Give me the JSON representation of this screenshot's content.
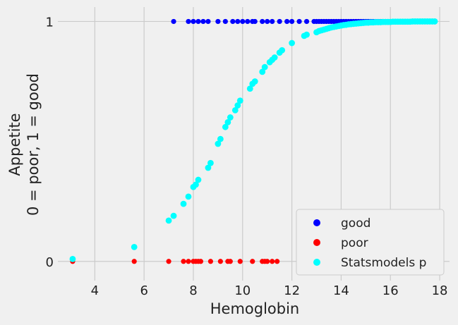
{
  "chart_data": {
    "type": "scatter",
    "xlabel": "Hemoglobin",
    "ylabel": [
      "Appetite",
      "0 = poor, 1 = good"
    ],
    "xlim": [
      2.5,
      18.4
    ],
    "ylim": [
      -0.08,
      1.06
    ],
    "xticks": [
      4,
      6,
      8,
      10,
      12,
      14,
      16,
      18
    ],
    "yticks": [
      0,
      1
    ],
    "grid": true,
    "legend_position": "bottom-right",
    "series": [
      {
        "name": "good",
        "color": "#0000ff",
        "x": [
          7.2,
          7.8,
          8.0,
          8.2,
          8.4,
          8.6,
          9.0,
          9.3,
          9.6,
          9.8,
          10.0,
          10.2,
          10.4,
          10.5,
          10.8,
          11.0,
          11.2,
          11.5,
          11.8,
          12.0,
          12.3,
          12.6,
          12.9,
          13.0,
          13.1,
          13.2,
          13.3,
          13.4,
          13.5,
          13.6,
          13.7,
          13.8,
          13.9,
          14.0,
          14.1,
          14.2,
          14.3,
          14.4,
          14.5,
          14.6,
          14.7,
          14.8,
          14.9,
          15.0,
          15.1,
          15.2,
          15.3,
          15.4,
          15.5,
          15.6,
          15.7,
          15.8,
          15.9,
          16.0,
          16.1,
          16.2,
          16.3,
          16.4
        ],
        "y": [
          1,
          1,
          1,
          1,
          1,
          1,
          1,
          1,
          1,
          1,
          1,
          1,
          1,
          1,
          1,
          1,
          1,
          1,
          1,
          1,
          1,
          1,
          1,
          1,
          1,
          1,
          1,
          1,
          1,
          1,
          1,
          1,
          1,
          1,
          1,
          1,
          1,
          1,
          1,
          1,
          1,
          1,
          1,
          1,
          1,
          1,
          1,
          1,
          1,
          1,
          1,
          1,
          1,
          1,
          1,
          1,
          1,
          1
        ]
      },
      {
        "name": "poor",
        "color": "#ff0000",
        "x": [
          3.1,
          5.6,
          7.0,
          7.6,
          7.8,
          8.0,
          8.1,
          8.2,
          8.3,
          8.7,
          9.1,
          9.4,
          9.5,
          9.9,
          10.4,
          10.8,
          10.9,
          11.0,
          11.2,
          11.4
        ],
        "y": [
          0,
          0,
          0,
          0,
          0,
          0,
          0,
          0,
          0,
          0,
          0,
          0,
          0,
          0,
          0,
          0,
          0,
          0,
          0,
          0
        ]
      },
      {
        "name": "Statsmodels p",
        "color": "#00ffff",
        "x": [
          3.1,
          5.6,
          7.0,
          7.2,
          7.6,
          7.8,
          8.0,
          8.1,
          8.2,
          8.6,
          8.7,
          9.0,
          9.1,
          9.3,
          9.4,
          9.5,
          9.7,
          9.8,
          9.9,
          10.3,
          10.4,
          10.5,
          10.8,
          10.9,
          11.1,
          11.2,
          11.3,
          11.5,
          11.6,
          12.0,
          12.5,
          12.6,
          13.0,
          13.1,
          13.2,
          13.3,
          13.4,
          13.5,
          13.6,
          13.7,
          13.8,
          13.9,
          14.0,
          14.1,
          14.2,
          14.3,
          14.4,
          14.5,
          14.6,
          14.7,
          14.8,
          14.9,
          15.0,
          15.1,
          15.2,
          15.3,
          15.4,
          15.5,
          15.6,
          15.7,
          15.8,
          15.9,
          16.0,
          16.1,
          16.2,
          16.3,
          16.4,
          16.5,
          16.6,
          16.7,
          16.8,
          16.9,
          17.0,
          17.1,
          17.2,
          17.3,
          17.4,
          17.5,
          17.6,
          17.7,
          17.8
        ],
        "y": [
          0.01,
          0.06,
          0.17,
          0.19,
          0.24,
          0.27,
          0.31,
          0.32,
          0.34,
          0.39,
          0.41,
          0.49,
          0.51,
          0.56,
          0.58,
          0.6,
          0.63,
          0.65,
          0.67,
          0.72,
          0.74,
          0.75,
          0.79,
          0.81,
          0.83,
          0.84,
          0.85,
          0.87,
          0.88,
          0.91,
          0.94,
          0.945,
          0.955,
          0.96,
          0.963,
          0.966,
          0.969,
          0.972,
          0.975,
          0.977,
          0.979,
          0.981,
          0.983,
          0.985,
          0.986,
          0.988,
          0.989,
          0.99,
          0.991,
          0.992,
          0.993,
          0.994,
          0.995,
          0.995,
          0.996,
          0.996,
          0.997,
          0.997,
          0.997,
          0.998,
          0.998,
          0.998,
          0.998,
          0.999,
          0.999,
          0.999,
          0.999,
          0.999,
          0.999,
          0.999,
          0.999,
          1.0,
          1.0,
          1.0,
          1.0,
          1.0,
          1.0,
          1.0,
          1.0,
          1.0,
          1.0
        ]
      }
    ]
  }
}
